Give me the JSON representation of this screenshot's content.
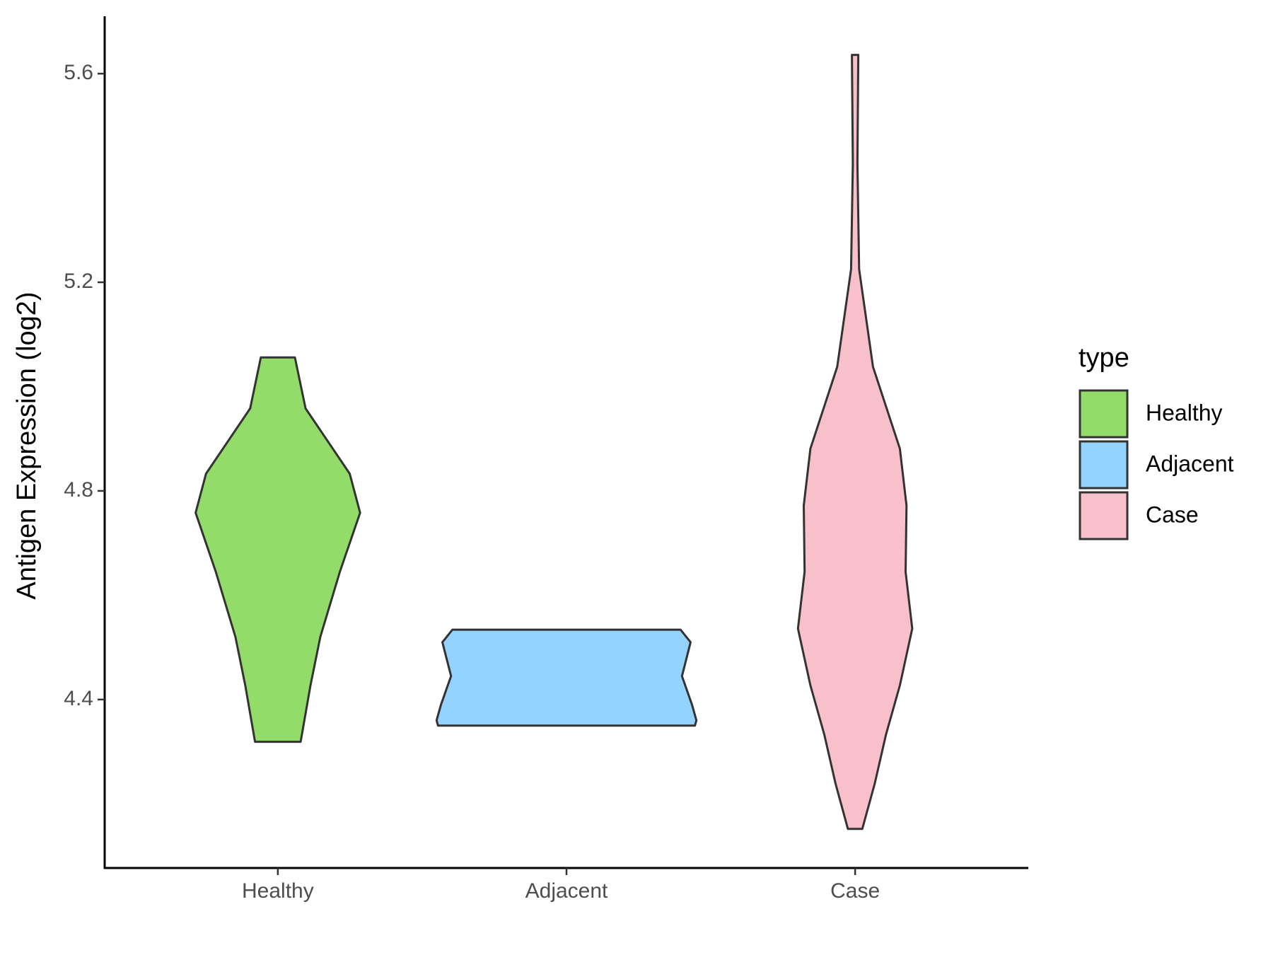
{
  "chart_data": {
    "type": "violin",
    "y_label": "Antigen Expression (log2)",
    "categories": [
      "Healthy",
      "Adjacent",
      "Case"
    ],
    "legend_title": "type",
    "legend": "right",
    "ylim": [
      4.077,
      5.71
    ],
    "yticks": [
      4.4,
      4.8,
      5.2,
      5.6
    ],
    "series": [
      {
        "name": "Healthy",
        "color": "#93dc69",
        "values": [
          5.056,
          4.958,
          4.833,
          4.758,
          4.645,
          4.52,
          4.427,
          4.319
        ],
        "widths": [
          0.059,
          0.096,
          0.249,
          0.285,
          0.215,
          0.147,
          0.113,
          0.079
        ]
      },
      {
        "name": "Adjacent",
        "color": "#93d3fd",
        "values": [
          4.534,
          4.51,
          4.445,
          4.39,
          4.36,
          4.35
        ],
        "widths": [
          0.395,
          0.43,
          0.4,
          0.435,
          0.45,
          0.445
        ]
      },
      {
        "name": "Case",
        "color": "#f7c0cb",
        "values": [
          5.636,
          5.428,
          5.225,
          5.038,
          4.881,
          4.772,
          4.645,
          4.536,
          4.427,
          4.333,
          4.239,
          4.152
        ],
        "widths": [
          0.011,
          0.008,
          0.014,
          0.062,
          0.155,
          0.178,
          0.175,
          0.198,
          0.155,
          0.107,
          0.068,
          0.025
        ]
      }
    ]
  }
}
